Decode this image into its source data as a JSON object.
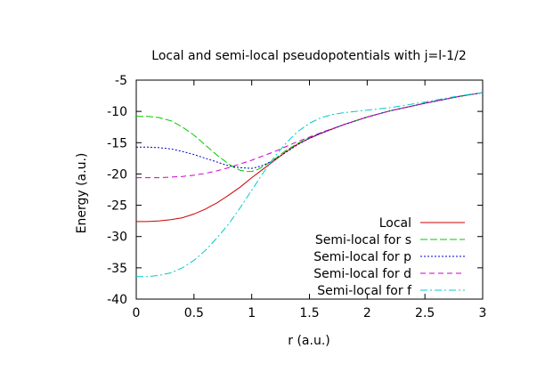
{
  "chart_data": {
    "type": "line",
    "title": "Local and semi-local pseudopotentials with j=l-1/2",
    "xlabel": "r (a.u.)",
    "ylabel": "Energy (a.u.)",
    "xlim": [
      0,
      3
    ],
    "ylim": [
      -40,
      -5
    ],
    "xticks": [
      0,
      0.5,
      1,
      1.5,
      2,
      2.5,
      3
    ],
    "xtick_labels": [
      "0",
      "0.5",
      "1",
      "1.5",
      "2",
      "2.5",
      "3"
    ],
    "yticks": [
      -40,
      -35,
      -30,
      -25,
      -20,
      -15,
      -10,
      -5
    ],
    "ytick_labels": [
      "-40",
      "-35",
      "-30",
      "-25",
      "-20",
      "-15",
      "-10",
      "-5"
    ],
    "grid": false,
    "legend_position": "bottom-right",
    "series": [
      {
        "name": "Local",
        "color": "#cc0000",
        "dash": "solid",
        "x": [
          0,
          0.1,
          0.2,
          0.3,
          0.4,
          0.5,
          0.6,
          0.7,
          0.8,
          0.9,
          1.0,
          1.1,
          1.2,
          1.3,
          1.4,
          1.5,
          1.6,
          1.8,
          2.0,
          2.2,
          2.5,
          2.8,
          3.0
        ],
        "y": [
          -27.6,
          -27.6,
          -27.5,
          -27.3,
          -27.0,
          -26.4,
          -25.6,
          -24.6,
          -23.4,
          -22.1,
          -20.6,
          -19.2,
          -17.8,
          -16.4,
          -15.2,
          -14.3,
          -13.5,
          -12.1,
          -10.9,
          -9.9,
          -8.7,
          -7.6,
          -7.0
        ]
      },
      {
        "name": "Semi-local for s",
        "color": "#00cc00",
        "dash": "longdash",
        "x": [
          0,
          0.1,
          0.2,
          0.3,
          0.4,
          0.5,
          0.6,
          0.7,
          0.8,
          0.85,
          0.9,
          0.95,
          1.0,
          1.05,
          1.1,
          1.2,
          1.3,
          1.4,
          1.5,
          1.6,
          1.8,
          2.0,
          2.2,
          2.5,
          2.8,
          3.0
        ],
        "y": [
          -10.8,
          -10.8,
          -11.0,
          -11.5,
          -12.5,
          -13.8,
          -15.4,
          -17.0,
          -18.4,
          -19.0,
          -19.4,
          -19.6,
          -19.6,
          -19.3,
          -18.8,
          -17.6,
          -16.2,
          -15.1,
          -14.2,
          -13.4,
          -12.1,
          -10.9,
          -9.9,
          -8.7,
          -7.6,
          -7.0
        ]
      },
      {
        "name": "Semi-local for p",
        "color": "#0000cc",
        "dash": "dotted",
        "x": [
          0,
          0.1,
          0.2,
          0.3,
          0.4,
          0.5,
          0.6,
          0.7,
          0.8,
          0.9,
          1.0,
          1.05,
          1.1,
          1.2,
          1.3,
          1.4,
          1.5,
          1.6,
          1.8,
          2.0,
          2.2,
          2.5,
          2.8,
          3.0
        ],
        "y": [
          -15.7,
          -15.7,
          -15.8,
          -16.0,
          -16.4,
          -16.9,
          -17.5,
          -18.1,
          -18.7,
          -19.0,
          -19.1,
          -18.9,
          -18.6,
          -17.7,
          -16.5,
          -15.3,
          -14.3,
          -13.5,
          -12.1,
          -10.9,
          -9.9,
          -8.7,
          -7.6,
          -7.0
        ]
      },
      {
        "name": "Semi-local for d",
        "color": "#cc00cc",
        "dash": "dashed",
        "x": [
          0,
          0.1,
          0.2,
          0.3,
          0.4,
          0.5,
          0.6,
          0.7,
          0.8,
          0.9,
          1.0,
          1.1,
          1.2,
          1.3,
          1.4,
          1.5,
          1.6,
          1.8,
          2.0,
          2.2,
          2.5,
          2.8,
          3.0
        ],
        "y": [
          -20.6,
          -20.6,
          -20.6,
          -20.5,
          -20.4,
          -20.2,
          -19.9,
          -19.5,
          -19.0,
          -18.4,
          -17.8,
          -17.1,
          -16.4,
          -15.6,
          -14.8,
          -14.1,
          -13.4,
          -12.1,
          -10.9,
          -9.9,
          -8.7,
          -7.6,
          -7.0
        ]
      },
      {
        "name": "Semi-local for f",
        "color": "#00cccc",
        "dash": "dashdot",
        "x": [
          0,
          0.1,
          0.2,
          0.3,
          0.4,
          0.5,
          0.6,
          0.7,
          0.8,
          0.9,
          1.0,
          1.1,
          1.2,
          1.3,
          1.4,
          1.5,
          1.6,
          1.7,
          1.8,
          2.0,
          2.2,
          2.5,
          2.8,
          3.0
        ],
        "y": [
          -36.4,
          -36.4,
          -36.2,
          -35.8,
          -35.0,
          -33.8,
          -32.2,
          -30.2,
          -28.0,
          -25.4,
          -22.6,
          -19.8,
          -17.2,
          -15.0,
          -13.2,
          -11.9,
          -11.0,
          -10.5,
          -10.2,
          -9.8,
          -9.4,
          -8.5,
          -7.5,
          -7.0
        ]
      }
    ]
  }
}
